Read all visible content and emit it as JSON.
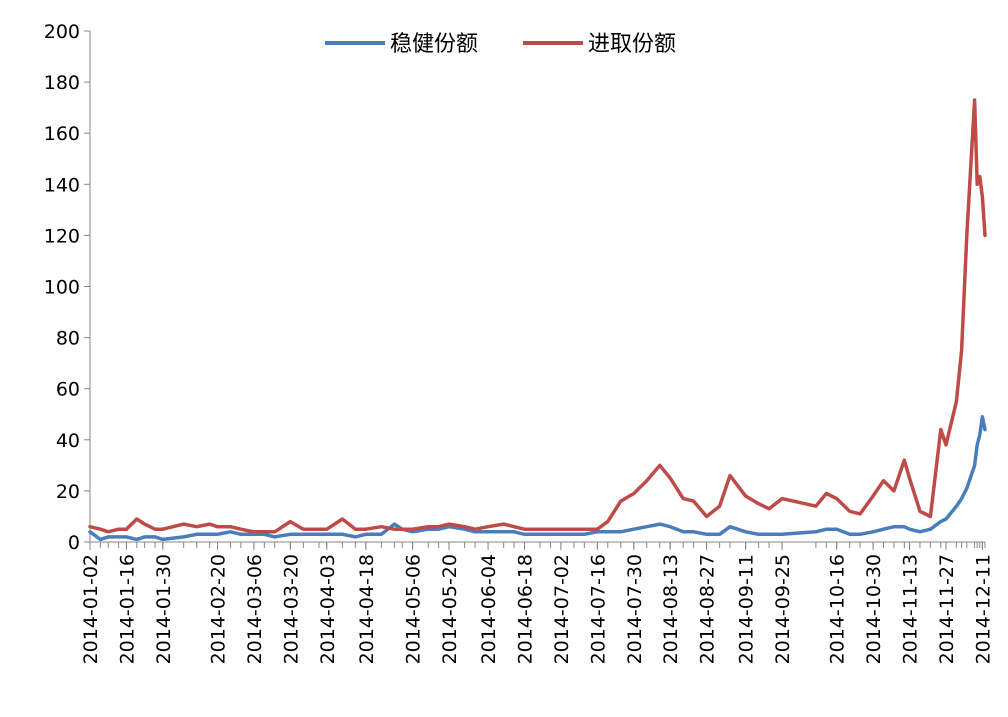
{
  "chart_data": {
    "type": "line",
    "title": "",
    "xlabel": "",
    "ylabel": "",
    "ylim": [
      0,
      200
    ],
    "yticks": [
      0,
      20,
      40,
      60,
      80,
      100,
      120,
      140,
      160,
      180,
      200
    ],
    "grid": false,
    "legend_position": "top-center",
    "x_tick_labels": [
      "2014-01-02",
      "2014-01-16",
      "2014-01-30",
      "2014-02-20",
      "2014-03-06",
      "2014-03-20",
      "2014-04-03",
      "2014-04-18",
      "2014-05-06",
      "2014-05-20",
      "2014-06-04",
      "2014-06-18",
      "2014-07-02",
      "2014-07-16",
      "2014-07-30",
      "2014-08-13",
      "2014-08-27",
      "2014-09-11",
      "2014-09-25",
      "2014-10-16",
      "2014-10-30",
      "2014-11-13",
      "2014-11-27",
      "2014-12-11"
    ],
    "series": [
      {
        "name": "稳健份额",
        "color": "#4a7ebb",
        "points": [
          [
            "2014-01-02",
            4
          ],
          [
            "2014-01-06",
            1
          ],
          [
            "2014-01-09",
            2
          ],
          [
            "2014-01-13",
            2
          ],
          [
            "2014-01-16",
            2
          ],
          [
            "2014-01-20",
            1
          ],
          [
            "2014-01-23",
            2
          ],
          [
            "2014-01-27",
            2
          ],
          [
            "2014-01-30",
            1
          ],
          [
            "2014-02-07",
            2
          ],
          [
            "2014-02-12",
            3
          ],
          [
            "2014-02-17",
            3
          ],
          [
            "2014-02-20",
            3
          ],
          [
            "2014-02-25",
            4
          ],
          [
            "2014-03-01",
            3
          ],
          [
            "2014-03-06",
            3
          ],
          [
            "2014-03-10",
            3
          ],
          [
            "2014-03-14",
            2
          ],
          [
            "2014-03-20",
            3
          ],
          [
            "2014-03-25",
            3
          ],
          [
            "2014-03-31",
            3
          ],
          [
            "2014-04-03",
            3
          ],
          [
            "2014-04-09",
            3
          ],
          [
            "2014-04-14",
            2
          ],
          [
            "2014-04-18",
            3
          ],
          [
            "2014-04-24",
            3
          ],
          [
            "2014-04-29",
            7
          ],
          [
            "2014-05-02",
            5
          ],
          [
            "2014-05-06",
            4
          ],
          [
            "2014-05-12",
            5
          ],
          [
            "2014-05-16",
            5
          ],
          [
            "2014-05-20",
            6
          ],
          [
            "2014-05-26",
            5
          ],
          [
            "2014-05-30",
            4
          ],
          [
            "2014-06-04",
            4
          ],
          [
            "2014-06-10",
            4
          ],
          [
            "2014-06-14",
            4
          ],
          [
            "2014-06-18",
            3
          ],
          [
            "2014-06-24",
            3
          ],
          [
            "2014-06-28",
            3
          ],
          [
            "2014-07-02",
            3
          ],
          [
            "2014-07-07",
            3
          ],
          [
            "2014-07-11",
            3
          ],
          [
            "2014-07-16",
            4
          ],
          [
            "2014-07-20",
            4
          ],
          [
            "2014-07-25",
            4
          ],
          [
            "2014-07-30",
            5
          ],
          [
            "2014-08-04",
            6
          ],
          [
            "2014-08-09",
            7
          ],
          [
            "2014-08-13",
            6
          ],
          [
            "2014-08-18",
            4
          ],
          [
            "2014-08-22",
            4
          ],
          [
            "2014-08-27",
            3
          ],
          [
            "2014-09-01",
            3
          ],
          [
            "2014-09-05",
            6
          ],
          [
            "2014-09-11",
            4
          ],
          [
            "2014-09-16",
            3
          ],
          [
            "2014-09-20",
            3
          ],
          [
            "2014-09-25",
            3
          ],
          [
            "2014-10-08",
            4
          ],
          [
            "2014-10-12",
            5
          ],
          [
            "2014-10-16",
            5
          ],
          [
            "2014-10-21",
            3
          ],
          [
            "2014-10-25",
            3
          ],
          [
            "2014-10-30",
            4
          ],
          [
            "2014-11-03",
            5
          ],
          [
            "2014-11-07",
            6
          ],
          [
            "2014-11-11",
            6
          ],
          [
            "2014-11-13",
            5
          ],
          [
            "2014-11-17",
            4
          ],
          [
            "2014-11-21",
            5
          ],
          [
            "2014-11-25",
            8
          ],
          [
            "2014-11-27",
            9
          ],
          [
            "2014-12-01",
            14
          ],
          [
            "2014-12-03",
            17
          ],
          [
            "2014-12-05",
            21
          ],
          [
            "2014-12-08",
            30
          ],
          [
            "2014-12-09",
            38
          ],
          [
            "2014-12-10",
            42
          ],
          [
            "2014-12-11",
            49
          ],
          [
            "2014-12-12",
            44
          ]
        ]
      },
      {
        "name": "进取份额",
        "color": "#be4b48",
        "points": [
          [
            "2014-01-02",
            6
          ],
          [
            "2014-01-06",
            5
          ],
          [
            "2014-01-09",
            4
          ],
          [
            "2014-01-13",
            5
          ],
          [
            "2014-01-16",
            5
          ],
          [
            "2014-01-20",
            9
          ],
          [
            "2014-01-23",
            7
          ],
          [
            "2014-01-27",
            5
          ],
          [
            "2014-01-30",
            5
          ],
          [
            "2014-02-07",
            7
          ],
          [
            "2014-02-12",
            6
          ],
          [
            "2014-02-17",
            7
          ],
          [
            "2014-02-20",
            6
          ],
          [
            "2014-02-25",
            6
          ],
          [
            "2014-03-01",
            5
          ],
          [
            "2014-03-06",
            4
          ],
          [
            "2014-03-10",
            4
          ],
          [
            "2014-03-14",
            4
          ],
          [
            "2014-03-20",
            8
          ],
          [
            "2014-03-25",
            5
          ],
          [
            "2014-03-31",
            5
          ],
          [
            "2014-04-03",
            5
          ],
          [
            "2014-04-09",
            9
          ],
          [
            "2014-04-14",
            5
          ],
          [
            "2014-04-18",
            5
          ],
          [
            "2014-04-24",
            6
          ],
          [
            "2014-04-29",
            5
          ],
          [
            "2014-05-02",
            5
          ],
          [
            "2014-05-06",
            5
          ],
          [
            "2014-05-12",
            6
          ],
          [
            "2014-05-16",
            6
          ],
          [
            "2014-05-20",
            7
          ],
          [
            "2014-05-26",
            6
          ],
          [
            "2014-05-30",
            5
          ],
          [
            "2014-06-04",
            6
          ],
          [
            "2014-06-10",
            7
          ],
          [
            "2014-06-14",
            6
          ],
          [
            "2014-06-18",
            5
          ],
          [
            "2014-06-24",
            5
          ],
          [
            "2014-06-28",
            5
          ],
          [
            "2014-07-02",
            5
          ],
          [
            "2014-07-07",
            5
          ],
          [
            "2014-07-11",
            5
          ],
          [
            "2014-07-16",
            5
          ],
          [
            "2014-07-20",
            8
          ],
          [
            "2014-07-25",
            16
          ],
          [
            "2014-07-30",
            19
          ],
          [
            "2014-08-04",
            24
          ],
          [
            "2014-08-09",
            30
          ],
          [
            "2014-08-13",
            25
          ],
          [
            "2014-08-18",
            17
          ],
          [
            "2014-08-22",
            16
          ],
          [
            "2014-08-27",
            10
          ],
          [
            "2014-09-01",
            14
          ],
          [
            "2014-09-05",
            26
          ],
          [
            "2014-09-11",
            18
          ],
          [
            "2014-09-16",
            15
          ],
          [
            "2014-09-20",
            13
          ],
          [
            "2014-09-25",
            17
          ],
          [
            "2014-10-08",
            14
          ],
          [
            "2014-10-12",
            19
          ],
          [
            "2014-10-16",
            17
          ],
          [
            "2014-10-21",
            12
          ],
          [
            "2014-10-25",
            11
          ],
          [
            "2014-10-30",
            18
          ],
          [
            "2014-11-03",
            24
          ],
          [
            "2014-11-07",
            20
          ],
          [
            "2014-11-11",
            32
          ],
          [
            "2014-11-13",
            25
          ],
          [
            "2014-11-17",
            12
          ],
          [
            "2014-11-21",
            10
          ],
          [
            "2014-11-25",
            44
          ],
          [
            "2014-11-27",
            38
          ],
          [
            "2014-12-01",
            55
          ],
          [
            "2014-12-03",
            75
          ],
          [
            "2014-12-05",
            120
          ],
          [
            "2014-12-08",
            173
          ],
          [
            "2014-12-09",
            140
          ],
          [
            "2014-12-10",
            143
          ],
          [
            "2014-12-11",
            135
          ],
          [
            "2014-12-12",
            120
          ]
        ]
      }
    ]
  }
}
